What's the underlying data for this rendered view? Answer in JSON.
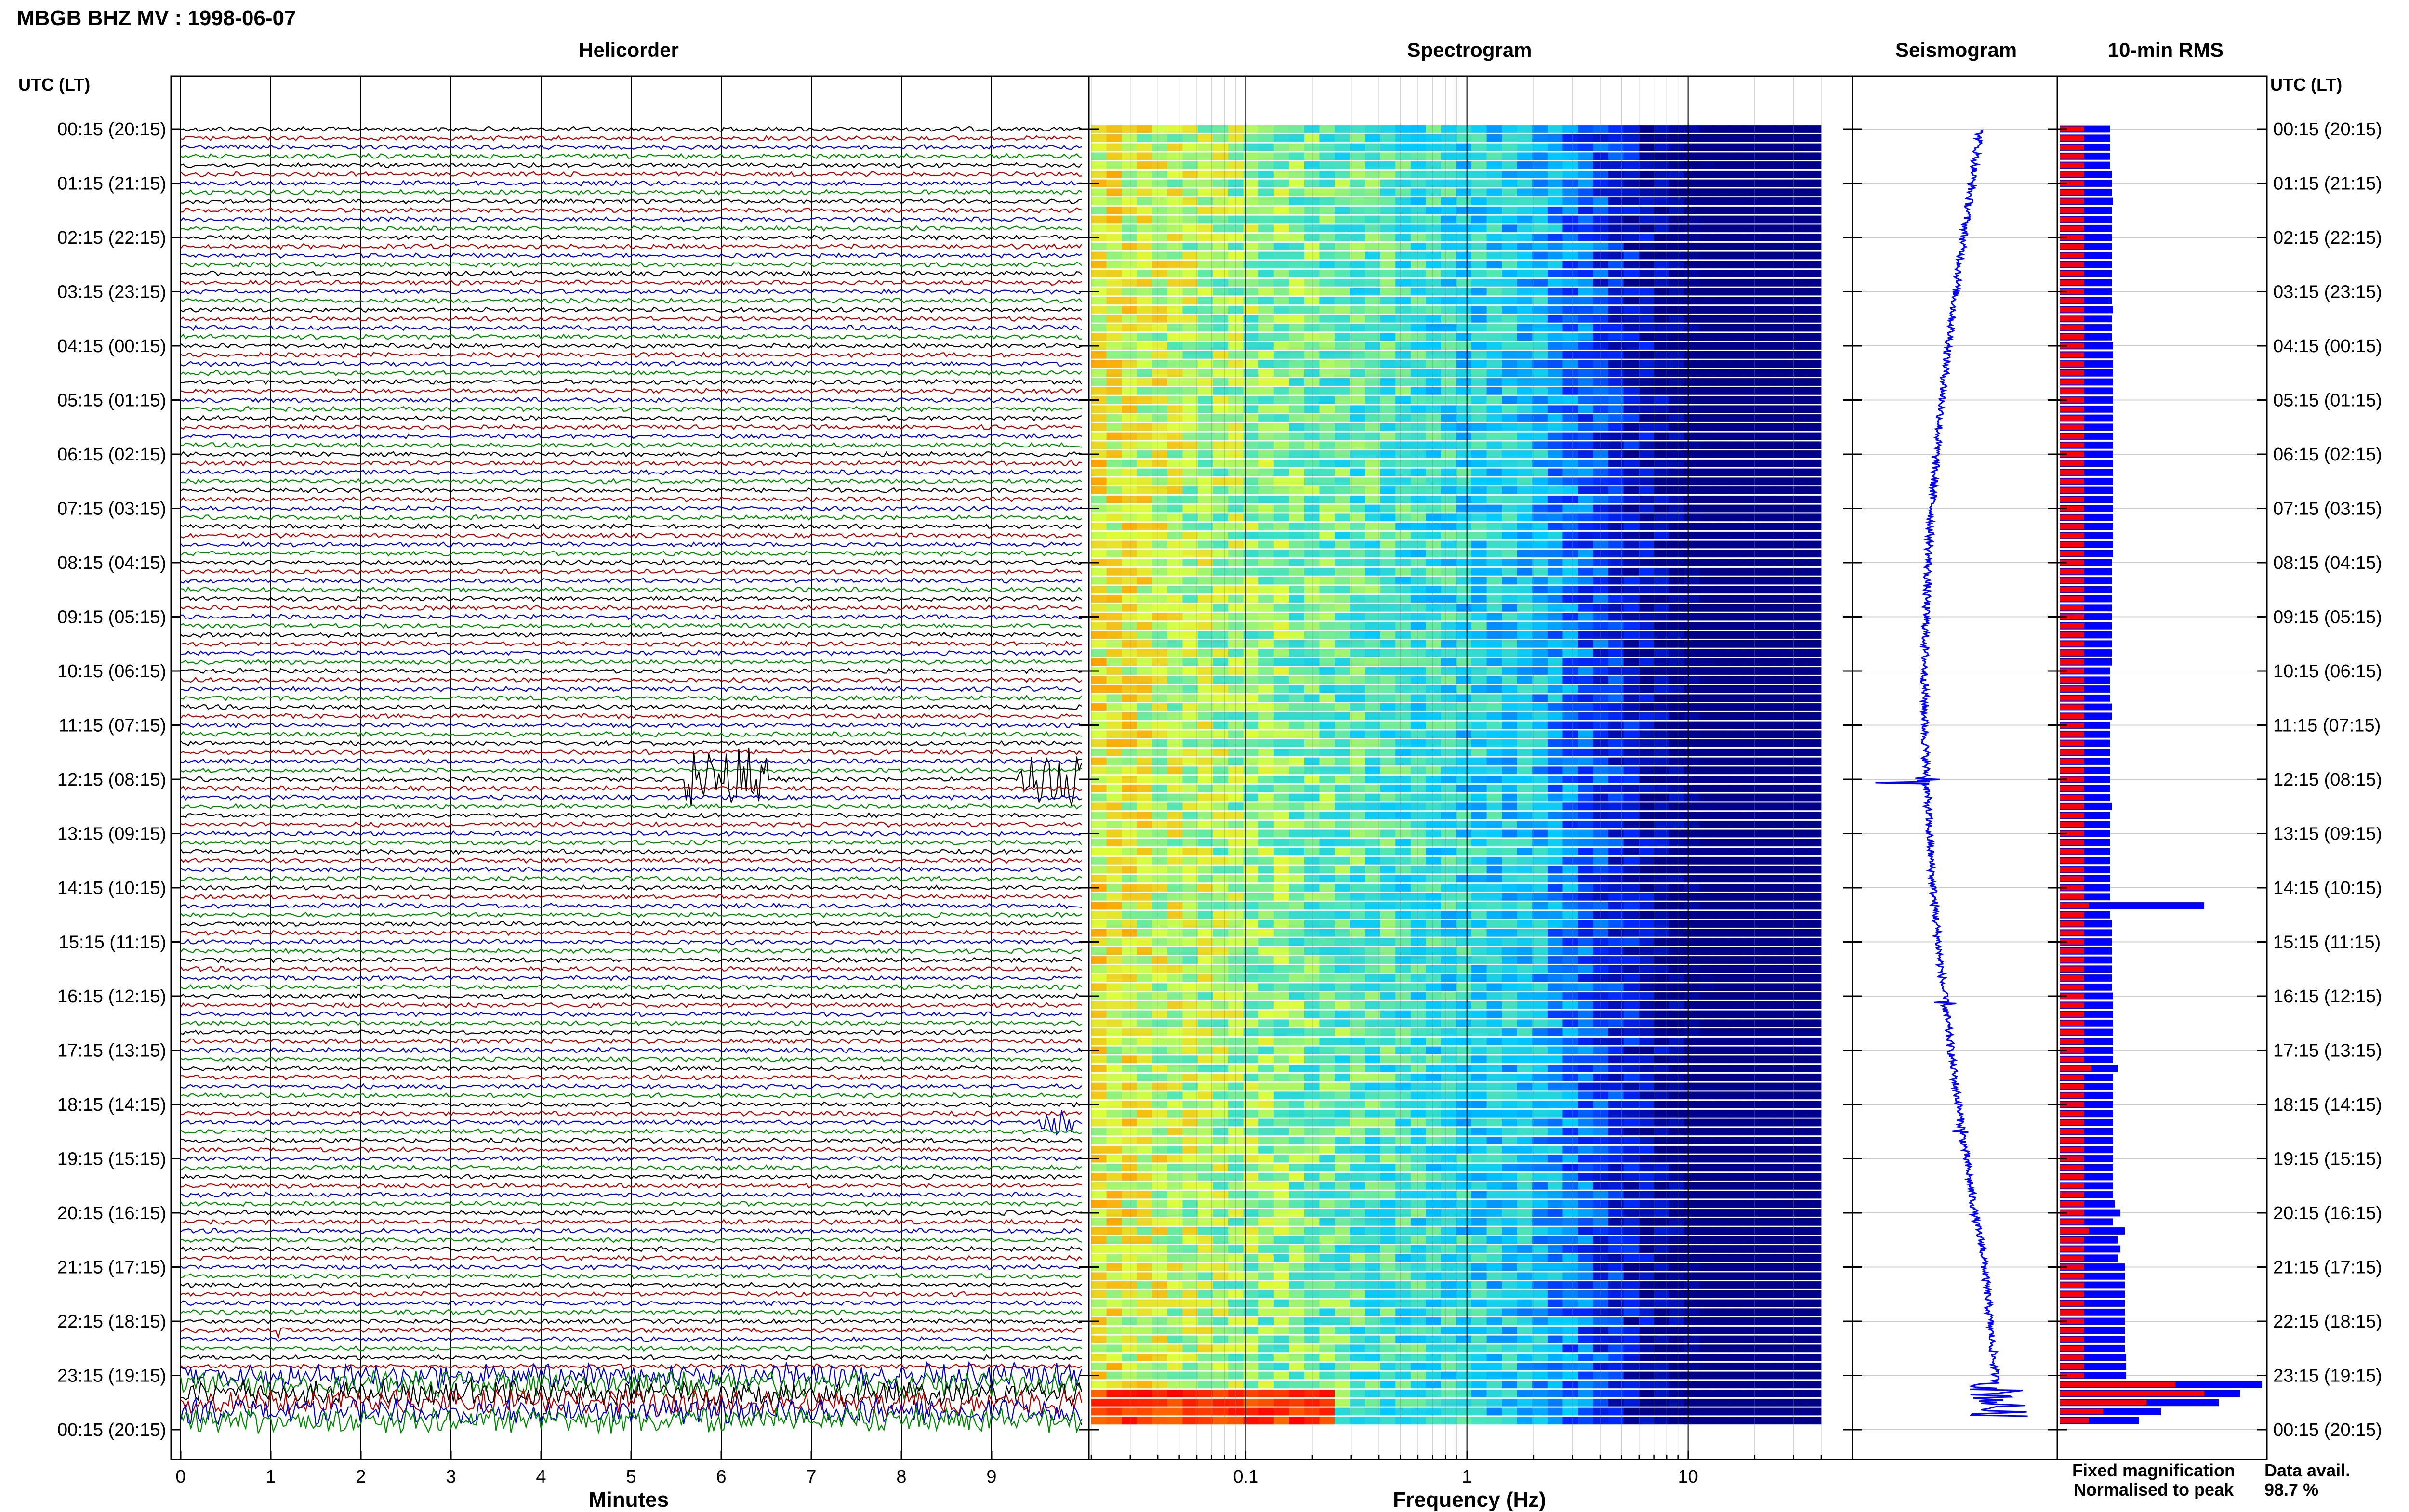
{
  "title": "MBGB BHZ MV : 1998-06-07",
  "panels": {
    "helicorder": "Helicorder",
    "spectrogram": "Spectrogram",
    "seismogram": "Seismogram",
    "rms": "10-min RMS"
  },
  "axis": {
    "left_header": "UTC (LT)",
    "right_header": "UTC (LT)",
    "minutes_label": "Minutes",
    "frequency_label": "Frequency (Hz)",
    "minute_ticks": [
      "0",
      "1",
      "2",
      "3",
      "4",
      "5",
      "6",
      "7",
      "8",
      "9"
    ],
    "frequency_ticks": [
      "0.1",
      "1",
      "10"
    ]
  },
  "time_labels": [
    "00:15 (20:15)",
    "01:15 (21:15)",
    "02:15 (22:15)",
    "03:15 (23:15)",
    "04:15 (00:15)",
    "05:15 (01:15)",
    "06:15 (02:15)",
    "07:15 (03:15)",
    "08:15 (04:15)",
    "09:15 (05:15)",
    "10:15 (06:15)",
    "11:15 (07:15)",
    "12:15 (08:15)",
    "13:15 (09:15)",
    "14:15 (10:15)",
    "15:15 (11:15)",
    "16:15 (12:15)",
    "17:15 (13:15)",
    "18:15 (14:15)",
    "19:15 (15:15)",
    "20:15 (16:15)",
    "21:15 (17:15)",
    "22:15 (18:15)",
    "23:15 (19:15)",
    "00:15 (20:15)"
  ],
  "legend": {
    "fixed": "Fixed magnification",
    "normalised": "Normalised to peak",
    "fixed_color": "#0000ff",
    "normalised_color": "#ff0000"
  },
  "availability": {
    "label": "Data avail.",
    "value": "98.7 %"
  },
  "colors": {
    "trace_cycle": [
      "#000000",
      "#b00000",
      "#0000cc",
      "#008800"
    ],
    "spectrogram_low": "#00008b",
    "spectrogram_high": "#ff0000"
  },
  "chart_data": {
    "type": "heatmap",
    "title": "MBGB BHZ MV : 1998-06-07",
    "traces_per_hour": 6,
    "trace_count": 144,
    "trace_minutes": 10,
    "xlim_minutes": [
      0,
      10
    ],
    "frequency_range_hz": [
      0.02,
      40
    ],
    "frequency_scale": "log",
    "events": [
      {
        "time_utc": "12:15",
        "start_minute": 5.6,
        "end_minute": 6.5,
        "amplitude": 5
      },
      {
        "time_utc": "12:15",
        "start_minute": 9.3,
        "end_minute": 10.0,
        "amplitude": 4
      },
      {
        "time_utc": "18:35",
        "start_minute": 9.5,
        "end_minute": 9.9,
        "amplitude": 2
      },
      {
        "time_utc": "22:25",
        "start_minute": 1.05,
        "end_minute": 1.15,
        "amplitude": 2
      }
    ],
    "rms_fixed": [
      0.35,
      0.35,
      0.35,
      0.35,
      0.35,
      0.36,
      0.36,
      0.36,
      0.37,
      0.36,
      0.36,
      0.36,
      0.36,
      0.36,
      0.36,
      0.36,
      0.36,
      0.36,
      0.36,
      0.36,
      0.37,
      0.36,
      0.36,
      0.36,
      0.37,
      0.37,
      0.37,
      0.37,
      0.37,
      0.37,
      0.37,
      0.37,
      0.37,
      0.37,
      0.37,
      0.37,
      0.37,
      0.37,
      0.37,
      0.37,
      0.37,
      0.37,
      0.37,
      0.37,
      0.37,
      0.37,
      0.37,
      0.37,
      0.36,
      0.36,
      0.36,
      0.36,
      0.36,
      0.36,
      0.36,
      0.36,
      0.36,
      0.36,
      0.36,
      0.36,
      0.35,
      0.35,
      0.35,
      0.35,
      0.36,
      0.36,
      0.35,
      0.35,
      0.35,
      0.35,
      0.35,
      0.35,
      0.35,
      0.35,
      0.35,
      0.36,
      0.35,
      0.35,
      0.35,
      0.35,
      0.35,
      0.35,
      0.35,
      0.35,
      0.35,
      0.35,
      1.0,
      0.35,
      0.36,
      0.36,
      0.36,
      0.36,
      0.36,
      0.36,
      0.36,
      0.36,
      0.37,
      0.37,
      0.37,
      0.37,
      0.37,
      0.37,
      0.37,
      0.37,
      0.4,
      0.37,
      0.37,
      0.37,
      0.37,
      0.37,
      0.37,
      0.37,
      0.37,
      0.37,
      0.37,
      0.37,
      0.37,
      0.37,
      0.37,
      0.38,
      0.42,
      0.37,
      0.45,
      0.4,
      0.42,
      0.4,
      0.45,
      0.45,
      0.45,
      0.45,
      0.45,
      0.45,
      0.45,
      0.45,
      0.45,
      0.45,
      0.46,
      0.46,
      0.46,
      1.4,
      1.25,
      1.1,
      0.7,
      0.55
    ],
    "rms_normalised": [
      0.17,
      0.17,
      0.17,
      0.17,
      0.17,
      0.17,
      0.17,
      0.17,
      0.17,
      0.17,
      0.17,
      0.17,
      0.17,
      0.17,
      0.17,
      0.17,
      0.17,
      0.17,
      0.17,
      0.17,
      0.17,
      0.17,
      0.17,
      0.17,
      0.17,
      0.17,
      0.17,
      0.17,
      0.17,
      0.17,
      0.17,
      0.17,
      0.17,
      0.17,
      0.17,
      0.17,
      0.17,
      0.17,
      0.17,
      0.17,
      0.17,
      0.17,
      0.17,
      0.17,
      0.17,
      0.17,
      0.17,
      0.17,
      0.17,
      0.17,
      0.17,
      0.17,
      0.17,
      0.17,
      0.17,
      0.17,
      0.17,
      0.17,
      0.17,
      0.17,
      0.17,
      0.17,
      0.17,
      0.17,
      0.17,
      0.17,
      0.17,
      0.17,
      0.17,
      0.17,
      0.17,
      0.17,
      0.17,
      0.17,
      0.17,
      0.17,
      0.17,
      0.17,
      0.17,
      0.17,
      0.17,
      0.17,
      0.17,
      0.17,
      0.17,
      0.17,
      0.2,
      0.17,
      0.17,
      0.17,
      0.17,
      0.17,
      0.17,
      0.17,
      0.17,
      0.17,
      0.17,
      0.17,
      0.17,
      0.17,
      0.17,
      0.17,
      0.17,
      0.17,
      0.22,
      0.17,
      0.17,
      0.17,
      0.17,
      0.17,
      0.17,
      0.17,
      0.17,
      0.17,
      0.17,
      0.17,
      0.17,
      0.17,
      0.17,
      0.17,
      0.17,
      0.17,
      0.2,
      0.17,
      0.17,
      0.17,
      0.17,
      0.17,
      0.17,
      0.17,
      0.17,
      0.17,
      0.17,
      0.17,
      0.17,
      0.17,
      0.17,
      0.17,
      0.17,
      0.8,
      1.0,
      0.6,
      0.3,
      0.2
    ]
  }
}
